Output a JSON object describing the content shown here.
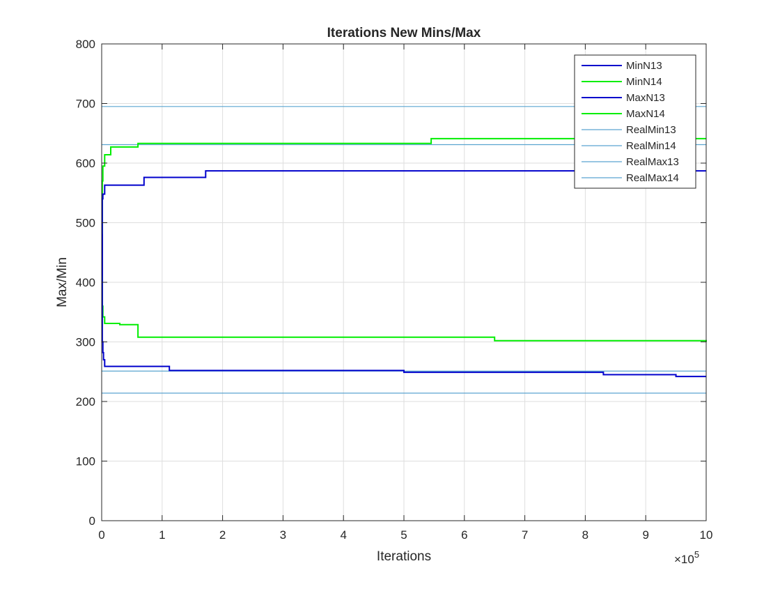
{
  "chart_data": {
    "type": "line",
    "title": "Iterations New Mins/Max",
    "xlabel": "Iterations",
    "ylabel": "Max/Min",
    "x_multiplier_label": "×10",
    "x_multiplier_exponent": "5",
    "xlim": [
      0,
      1000000
    ],
    "ylim": [
      0,
      800
    ],
    "x_ticks": [
      0,
      100000,
      200000,
      300000,
      400000,
      500000,
      600000,
      700000,
      800000,
      900000,
      1000000
    ],
    "x_tick_labels": [
      "0",
      "1",
      "2",
      "3",
      "4",
      "5",
      "6",
      "7",
      "8",
      "9",
      "10"
    ],
    "y_ticks": [
      0,
      100,
      200,
      300,
      400,
      500,
      600,
      700,
      800
    ],
    "y_tick_labels": [
      "0",
      "100",
      "200",
      "300",
      "400",
      "500",
      "600",
      "700",
      "800"
    ],
    "grid": true,
    "legend_position": "top-right",
    "series": [
      {
        "name": "MinN13",
        "color": "#0000cc",
        "step": true,
        "x": [
          0,
          1000,
          2000,
          3000,
          5000,
          112000,
          500000,
          830000,
          950000,
          1000000
        ],
        "y": [
          480,
          300,
          282,
          270,
          259,
          252,
          249,
          245,
          242,
          242
        ]
      },
      {
        "name": "MinN14",
        "color": "#00ee00",
        "step": true,
        "x": [
          0,
          1000,
          2000,
          5000,
          30000,
          60000,
          650000,
          1000000
        ],
        "y": [
          410,
          360,
          342,
          331,
          329,
          308,
          302,
          300
        ]
      },
      {
        "name": "MaxN13",
        "color": "#0000cc",
        "step": true,
        "x": [
          0,
          1000,
          2000,
          5000,
          70000,
          172000,
          1000000
        ],
        "y": [
          400,
          540,
          548,
          563,
          576,
          587,
          587
        ]
      },
      {
        "name": "MaxN14",
        "color": "#00ee00",
        "step": true,
        "x": [
          0,
          1000,
          2000,
          5000,
          15000,
          60000,
          545000,
          1000000
        ],
        "y": [
          450,
          570,
          595,
          614,
          627,
          633,
          641,
          641
        ]
      },
      {
        "name": "RealMin13",
        "color": "#5aa5d0",
        "x": [
          0,
          1000000
        ],
        "y": [
          214,
          214
        ]
      },
      {
        "name": "RealMin14",
        "color": "#5aa5d0",
        "x": [
          0,
          1000000
        ],
        "y": [
          251,
          251
        ]
      },
      {
        "name": "RealMax13",
        "color": "#5aa5d0",
        "x": [
          0,
          1000000
        ],
        "y": [
          631,
          631
        ]
      },
      {
        "name": "RealMax14",
        "color": "#5aa5d0",
        "x": [
          0,
          1000000
        ],
        "y": [
          695,
          695
        ]
      }
    ]
  }
}
